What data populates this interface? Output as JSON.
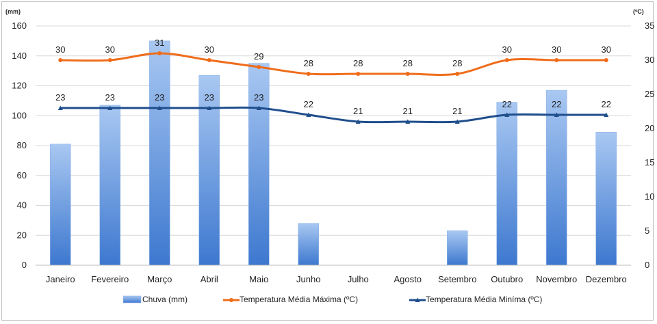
{
  "chart_data": {
    "type": "bar",
    "categories": [
      "Janeiro",
      "Fevereiro",
      "Março",
      "Abril",
      "Maio",
      "Junho",
      "Julho",
      "Agosto",
      "Setembro",
      "Outubro",
      "Novembro",
      "Dezembro"
    ],
    "left_axis": {
      "unit_label": "(mm)",
      "ylim": [
        0,
        160
      ],
      "ticks": [
        "0",
        "20",
        "40",
        "60",
        "80",
        "100",
        "120",
        "140",
        "160"
      ]
    },
    "right_axis": {
      "unit_label": "(ºC)",
      "ylim": [
        0,
        35
      ],
      "ticks": [
        "0",
        "5",
        "10",
        "15",
        "20",
        "25",
        "30",
        "35"
      ]
    },
    "grid": true,
    "legend_position": "bottom",
    "series": [
      {
        "name": "Chuva (mm)",
        "type": "bar",
        "axis": "left",
        "color": "#4a86d8",
        "values": [
          81,
          107,
          150,
          127,
          135,
          28,
          0,
          0,
          23,
          109,
          117,
          89
        ]
      },
      {
        "name": "Temperatura Média Máxima (ºC)",
        "type": "line",
        "axis": "right",
        "color": "#ef6c1a",
        "values": [
          30,
          30,
          31,
          30,
          29,
          28,
          28,
          28,
          28,
          30,
          30,
          30
        ],
        "data_labels": [
          "30",
          "30",
          "31",
          "30",
          "29",
          "28",
          "28",
          "28",
          "28",
          "30",
          "30",
          "30"
        ]
      },
      {
        "name": "Temperatura Média Miníma (ºC)",
        "type": "line",
        "axis": "right",
        "color": "#1f4e8c",
        "values": [
          23,
          23,
          23,
          23,
          23,
          22,
          21,
          21,
          21,
          22,
          22,
          22
        ],
        "data_labels": [
          "23",
          "23",
          "23",
          "23",
          "23",
          "22",
          "21",
          "21",
          "21",
          "22",
          "22",
          "22"
        ]
      }
    ]
  }
}
